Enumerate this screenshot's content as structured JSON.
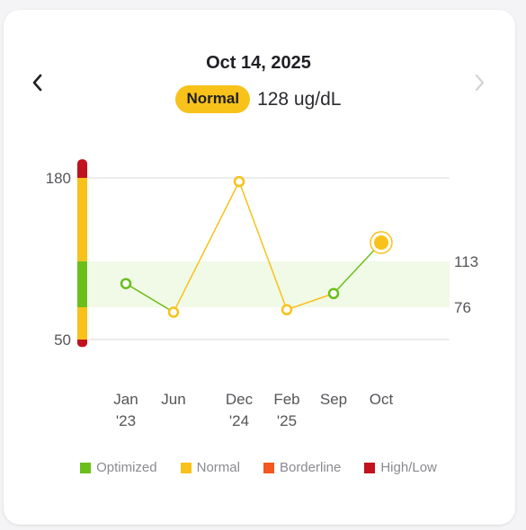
{
  "header": {
    "date": "Oct 14, 2025",
    "status_label": "Normal",
    "reading": "128 ug/dL"
  },
  "colors": {
    "optimized": "#6abf1a",
    "normal": "#f8c21a",
    "borderline": "#f4571f",
    "high_low": "#c0121f",
    "optimal_band": "#f1f9e7"
  },
  "chart_data": {
    "type": "line",
    "x": [
      {
        "label": [
          "Jan",
          "'23"
        ],
        "date": "2023-01"
      },
      {
        "label": [
          "Jun",
          ""
        ],
        "date": "2023-06"
      },
      {
        "label": [
          "Dec",
          "'24"
        ],
        "date": "2024-12"
      },
      {
        "label": [
          "Feb",
          "'25"
        ],
        "date": "2025-02"
      },
      {
        "label": [
          "Sep",
          ""
        ],
        "date": "2025-09"
      },
      {
        "label": [
          "Oct",
          ""
        ],
        "date": "2025-10"
      }
    ],
    "values": [
      95,
      72,
      177,
      74,
      87,
      128
    ],
    "point_status": [
      "optimized",
      "normal",
      "normal",
      "normal",
      "optimized",
      "normal"
    ],
    "selected_index": 5,
    "y_ticks": [
      180,
      50
    ],
    "optimal_range": [
      76,
      113
    ],
    "ylim": [
      50,
      180
    ],
    "grid": true,
    "legend_position": "bottom",
    "status_bar": [
      {
        "from": 50,
        "to": 44,
        "status": "high_low"
      },
      {
        "from": 76,
        "to": 50,
        "status": "normal"
      },
      {
        "from": 113,
        "to": 76,
        "status": "optimized"
      },
      {
        "from": 180,
        "to": 113,
        "status": "normal"
      },
      {
        "from": 195,
        "to": 180,
        "status": "high_low"
      }
    ]
  },
  "legend": [
    {
      "label": "Optimized",
      "status": "optimized"
    },
    {
      "label": "Normal",
      "status": "normal"
    },
    {
      "label": "Borderline",
      "status": "borderline"
    },
    {
      "label": "High/Low",
      "status": "high_low"
    }
  ]
}
